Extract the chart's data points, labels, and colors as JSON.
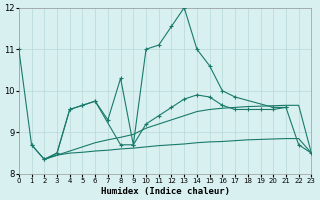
{
  "xlabel": "Humidex (Indice chaleur)",
  "bg_color": "#d8f0f0",
  "line_color": "#1a7a6a",
  "grid_color": "#b8d8d8",
  "xlim": [
    0,
    23
  ],
  "ylim": [
    8,
    12
  ],
  "yticks": [
    8,
    9,
    10,
    11,
    12
  ],
  "xticks": [
    0,
    1,
    2,
    3,
    4,
    5,
    6,
    7,
    8,
    9,
    10,
    11,
    12,
    13,
    14,
    15,
    16,
    17,
    18,
    19,
    20,
    21,
    22,
    23
  ],
  "line1_x": [
    0,
    1,
    2,
    3,
    4,
    5,
    6,
    7,
    8,
    9,
    10,
    11,
    12,
    13,
    14,
    15,
    16,
    17,
    20,
    21
  ],
  "line1_y": [
    11.0,
    8.7,
    8.35,
    8.5,
    9.55,
    9.65,
    9.75,
    9.3,
    10.3,
    8.7,
    11.0,
    11.1,
    11.55,
    12.0,
    11.0,
    10.6,
    10.0,
    9.85,
    9.6,
    9.6
  ],
  "line2_x": [
    1,
    2,
    3,
    4,
    5,
    6,
    8,
    9,
    10,
    11,
    12,
    13,
    14,
    15,
    16,
    17,
    18,
    19,
    20,
    21,
    22,
    23
  ],
  "line2_y": [
    8.7,
    8.35,
    8.5,
    9.55,
    9.65,
    9.75,
    8.7,
    8.7,
    9.2,
    9.4,
    9.6,
    9.8,
    9.9,
    9.85,
    9.65,
    9.55,
    9.55,
    9.55,
    9.55,
    9.6,
    8.7,
    8.5
  ],
  "line3_x": [
    2,
    3,
    4,
    5,
    6,
    7,
    8,
    9,
    10,
    11,
    12,
    13,
    14,
    15,
    16,
    17,
    18,
    19,
    20,
    21,
    22,
    23
  ],
  "line3_y": [
    8.35,
    8.45,
    8.5,
    8.52,
    8.55,
    8.57,
    8.6,
    8.62,
    8.65,
    8.68,
    8.7,
    8.72,
    8.75,
    8.77,
    8.78,
    8.8,
    8.82,
    8.83,
    8.84,
    8.85,
    8.85,
    8.5
  ],
  "line4_x": [
    2,
    3,
    4,
    5,
    6,
    7,
    8,
    9,
    10,
    11,
    12,
    13,
    14,
    15,
    16,
    17,
    18,
    19,
    20,
    21,
    22,
    23
  ],
  "line4_y": [
    8.35,
    8.45,
    8.55,
    8.65,
    8.75,
    8.82,
    8.88,
    8.95,
    9.1,
    9.2,
    9.3,
    9.4,
    9.5,
    9.55,
    9.58,
    9.6,
    9.62,
    9.63,
    9.64,
    9.65,
    9.65,
    8.5
  ]
}
